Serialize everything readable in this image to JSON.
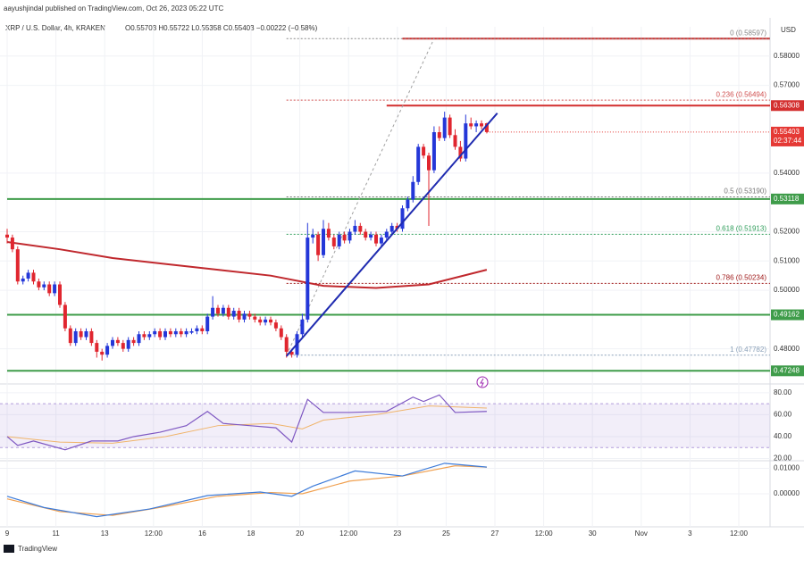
{
  "header": "aayushjindal published on TradingView.com, Oct 26, 2023 05:22 UTC",
  "footer": "TradingView",
  "chart_data": {
    "type": "candlestick",
    "title": "XRP / U.S. Dollar, 4h, KRAKEN",
    "ohlc_text": "O0.55703 H0.55722 L0.55358 C0.55403 −0.00222 (−0.58%)",
    "currency": "USD",
    "up_color": "#2437d8",
    "down_color": "#e0262f",
    "grid": true,
    "ylim": [
      0.468,
      0.59
    ],
    "yticks": [
      {
        "value": 0.48,
        "label": "0.48000"
      },
      {
        "value": 0.5,
        "label": "0.50000"
      },
      {
        "value": 0.51,
        "label": "0.51000"
      },
      {
        "value": 0.52,
        "label": "0.52000"
      },
      {
        "value": 0.54,
        "label": "0.54000"
      },
      {
        "value": 0.57,
        "label": "0.57000"
      },
      {
        "value": 0.58,
        "label": "0.58000"
      }
    ],
    "xticks": [
      "9",
      "11",
      "13",
      "12:00",
      "16",
      "18",
      "20",
      "12:00",
      "23",
      "25",
      "27",
      "12:00",
      "30",
      "Nov",
      "3",
      "12:00"
    ],
    "candles": [
      [
        0.519,
        0.521,
        0.516,
        0.518
      ],
      [
        0.518,
        0.519,
        0.513,
        0.514
      ],
      [
        0.514,
        0.515,
        0.502,
        0.503
      ],
      [
        0.503,
        0.505,
        0.502,
        0.504
      ],
      [
        0.504,
        0.507,
        0.503,
        0.506
      ],
      [
        0.506,
        0.507,
        0.502,
        0.503
      ],
      [
        0.503,
        0.504,
        0.5,
        0.501
      ],
      [
        0.501,
        0.503,
        0.5,
        0.502
      ],
      [
        0.502,
        0.503,
        0.498,
        0.499
      ],
      [
        0.499,
        0.503,
        0.498,
        0.502
      ],
      [
        0.502,
        0.503,
        0.494,
        0.495
      ],
      [
        0.495,
        0.496,
        0.486,
        0.487
      ],
      [
        0.487,
        0.488,
        0.481,
        0.482
      ],
      [
        0.482,
        0.487,
        0.481,
        0.486
      ],
      [
        0.486,
        0.487,
        0.483,
        0.484
      ],
      [
        0.484,
        0.487,
        0.483,
        0.486
      ],
      [
        0.486,
        0.487,
        0.481,
        0.482
      ],
      [
        0.482,
        0.483,
        0.477,
        0.479
      ],
      [
        0.479,
        0.48,
        0.476,
        0.478
      ],
      [
        0.478,
        0.482,
        0.477,
        0.481
      ],
      [
        0.481,
        0.484,
        0.48,
        0.483
      ],
      [
        0.483,
        0.484,
        0.481,
        0.482
      ],
      [
        0.482,
        0.483,
        0.479,
        0.48
      ],
      [
        0.48,
        0.484,
        0.479,
        0.483
      ],
      [
        0.483,
        0.484,
        0.481,
        0.482
      ],
      [
        0.482,
        0.486,
        0.481,
        0.485
      ],
      [
        0.485,
        0.486,
        0.483,
        0.484
      ],
      [
        0.484,
        0.486,
        0.483,
        0.485
      ],
      [
        0.485,
        0.487,
        0.484,
        0.486
      ],
      [
        0.486,
        0.487,
        0.483,
        0.484
      ],
      [
        0.484,
        0.487,
        0.483,
        0.486
      ],
      [
        0.486,
        0.487,
        0.484,
        0.485
      ],
      [
        0.485,
        0.487,
        0.484,
        0.486
      ],
      [
        0.486,
        0.487,
        0.484,
        0.485
      ],
      [
        0.485,
        0.487,
        0.484,
        0.486
      ],
      [
        0.4855,
        0.487,
        0.485,
        0.486
      ],
      [
        0.486,
        0.488,
        0.485,
        0.487
      ],
      [
        0.487,
        0.488,
        0.485,
        0.486
      ],
      [
        0.486,
        0.492,
        0.485,
        0.491
      ],
      [
        0.491,
        0.498,
        0.49,
        0.494
      ],
      [
        0.494,
        0.495,
        0.491,
        0.492
      ],
      [
        0.492,
        0.495,
        0.491,
        0.494
      ],
      [
        0.494,
        0.495,
        0.49,
        0.491
      ],
      [
        0.491,
        0.494,
        0.49,
        0.493
      ],
      [
        0.493,
        0.494,
        0.489,
        0.49
      ],
      [
        0.49,
        0.493,
        0.489,
        0.492
      ],
      [
        0.492,
        0.493,
        0.49,
        0.491
      ],
      [
        0.491,
        0.492,
        0.489,
        0.49
      ],
      [
        0.49,
        0.491,
        0.488,
        0.489
      ],
      [
        0.489,
        0.491,
        0.488,
        0.49
      ],
      [
        0.49,
        0.491,
        0.488,
        0.489
      ],
      [
        0.489,
        0.49,
        0.486,
        0.487
      ],
      [
        0.487,
        0.488,
        0.483,
        0.484
      ],
      [
        0.484,
        0.485,
        0.477,
        0.479
      ],
      [
        0.479,
        0.48,
        0.477,
        0.478
      ],
      [
        0.478,
        0.486,
        0.477,
        0.485
      ],
      [
        0.485,
        0.492,
        0.484,
        0.49
      ],
      [
        0.49,
        0.523,
        0.489,
        0.518
      ],
      [
        0.518,
        0.521,
        0.516,
        0.519
      ],
      [
        0.519,
        0.52,
        0.51,
        0.512
      ],
      [
        0.512,
        0.524,
        0.511,
        0.521
      ],
      [
        0.521,
        0.523,
        0.517,
        0.518
      ],
      [
        0.518,
        0.519,
        0.514,
        0.515
      ],
      [
        0.515,
        0.52,
        0.514,
        0.519
      ],
      [
        0.519,
        0.52,
        0.516,
        0.517
      ],
      [
        0.517,
        0.521,
        0.516,
        0.52
      ],
      [
        0.52,
        0.524,
        0.519,
        0.522
      ],
      [
        0.522,
        0.523,
        0.519,
        0.52
      ],
      [
        0.52,
        0.521,
        0.517,
        0.518
      ],
      [
        0.518,
        0.52,
        0.517,
        0.519
      ],
      [
        0.519,
        0.52,
        0.515,
        0.516
      ],
      [
        0.516,
        0.519,
        0.515,
        0.518
      ],
      [
        0.518,
        0.521,
        0.517,
        0.52
      ],
      [
        0.52,
        0.523,
        0.519,
        0.522
      ],
      [
        0.522,
        0.523,
        0.52,
        0.521
      ],
      [
        0.521,
        0.529,
        0.52,
        0.528
      ],
      [
        0.528,
        0.532,
        0.527,
        0.531
      ],
      [
        0.531,
        0.539,
        0.53,
        0.537
      ],
      [
        0.537,
        0.55,
        0.536,
        0.549
      ],
      [
        0.549,
        0.55,
        0.545,
        0.546
      ],
      [
        0.546,
        0.547,
        0.522,
        0.541
      ],
      [
        0.541,
        0.556,
        0.54,
        0.554
      ],
      [
        0.554,
        0.556,
        0.551,
        0.552
      ],
      [
        0.552,
        0.561,
        0.551,
        0.559
      ],
      [
        0.559,
        0.56,
        0.552,
        0.553
      ],
      [
        0.553,
        0.555,
        0.548,
        0.549
      ],
      [
        0.549,
        0.551,
        0.544,
        0.545
      ],
      [
        0.545,
        0.56,
        0.544,
        0.557
      ],
      [
        0.557,
        0.559,
        0.555,
        0.556
      ],
      [
        0.556,
        0.558,
        0.554,
        0.557
      ],
      [
        0.557,
        0.558,
        0.555,
        0.556
      ],
      [
        0.55703,
        0.55722,
        0.55358,
        0.55403
      ]
    ],
    "ma": {
      "color": "#c0282d",
      "x": [
        0,
        10,
        20,
        30,
        40,
        50,
        60,
        70,
        80,
        91
      ],
      "values": [
        0.5165,
        0.514,
        0.511,
        0.509,
        0.507,
        0.505,
        0.5015,
        0.5008,
        0.502,
        0.507
      ]
    },
    "trendline": {
      "color": "#1f2bb0",
      "x": [
        53,
        93
      ],
      "values": [
        0.4775,
        0.5605
      ]
    },
    "fib": {
      "color": "#a0a0a0",
      "x": [
        53,
        81
      ],
      "values": [
        0.47782,
        0.58597
      ],
      "levels": [
        {
          "value": 0.58597,
          "label": "0 (0.58597)",
          "color": "#888888"
        },
        {
          "value": 0.56494,
          "label": "0.236 (0.56494)",
          "color": "#d05050"
        },
        {
          "value": 0.5319,
          "label": "0.5 (0.53190)",
          "color": "#777777"
        },
        {
          "value": 0.51913,
          "label": "0.618 (0.51913)",
          "color": "#2e9d5a"
        },
        {
          "value": 0.50234,
          "label": "0.786 (0.50234)",
          "color": "#a01c1c"
        },
        {
          "value": 0.47782,
          "label": "1 (0.47782)",
          "color": "#8aa0b8"
        }
      ]
    },
    "levels": [
      {
        "value": 0.58597,
        "x": 75,
        "color": "#d32f2f"
      },
      {
        "value": 0.56308,
        "x": 72,
        "label": "0.56308",
        "color": "#d32f2f"
      },
      {
        "value": 0.53118,
        "x": 0,
        "label": "0.53118",
        "color": "#3f9c4a"
      },
      {
        "value": 0.49162,
        "x": 0,
        "label": "0.49162",
        "color": "#3f9c4a"
      },
      {
        "value": 0.47248,
        "x": 0,
        "label": "0.47248",
        "color": "#3f9c4a"
      }
    ],
    "last_price": {
      "value": 0.55403,
      "label": "0.55403",
      "countdown": "02:37:44",
      "color": "#e53935"
    },
    "rsi": {
      "ylim": [
        18,
        88
      ],
      "yticks": [
        {
          "value": 80,
          "label": "80.00"
        },
        {
          "value": 60,
          "label": "60.00"
        },
        {
          "value": 40,
          "label": "40.00"
        },
        {
          "value": 20,
          "label": "20.00"
        }
      ],
      "band": [
        30,
        70
      ],
      "color": "#7e57c2",
      "ma_color": "#f0b46a",
      "x": [
        0,
        2,
        5,
        11,
        16,
        21,
        24,
        29,
        34,
        38,
        41,
        46,
        51,
        54,
        57,
        60,
        65,
        72,
        77,
        79,
        82,
        85,
        91
      ],
      "values": [
        40,
        32,
        36,
        28,
        36,
        36,
        40,
        44,
        50,
        63,
        52,
        50,
        48,
        35,
        74,
        62,
        62,
        63,
        76,
        72,
        78,
        62,
        63
      ],
      "ma_x": [
        0,
        10,
        20,
        30,
        40,
        50,
        56,
        60,
        70,
        80,
        91
      ],
      "ma_values": [
        40,
        35,
        34,
        40,
        50,
        52,
        47,
        55,
        60,
        68,
        66
      ]
    },
    "macd": {
      "ylim": [
        -0.013,
        0.013
      ],
      "yticks": [
        {
          "value": 0.01,
          "label": "0.01000"
        },
        {
          "value": 0,
          "label": "0.00000"
        }
      ],
      "color": "#3d7bd9",
      "signal_color": "#f0a050",
      "x": [
        0,
        7,
        17,
        27,
        38,
        48,
        54,
        58,
        66,
        75,
        83,
        91
      ],
      "values": [
        -0.001,
        -0.0054,
        -0.009,
        -0.006,
        -0.0007,
        0.0007,
        -0.001,
        0.003,
        0.009,
        0.007,
        0.012,
        0.0105
      ],
      "signal_x": [
        0,
        10,
        20,
        30,
        40,
        50,
        56,
        65,
        75,
        85,
        91
      ],
      "signal_values": [
        -0.002,
        -0.007,
        -0.0085,
        -0.005,
        -0.001,
        0.0005,
        0,
        0.005,
        0.007,
        0.011,
        0.0105
      ]
    }
  }
}
